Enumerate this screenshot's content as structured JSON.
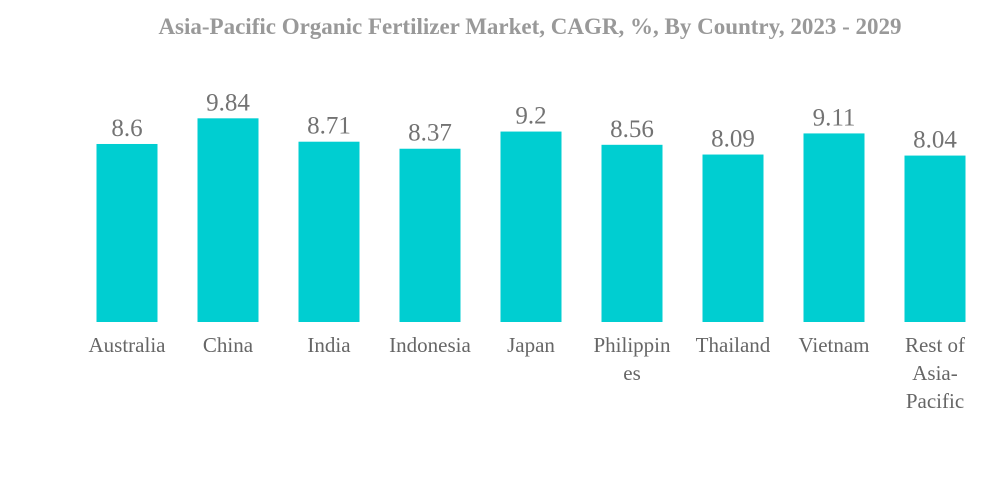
{
  "chart_data": {
    "type": "bar",
    "title": "Asia-Pacific Organic Fertilizer Market, CAGR, %, By Country, 2023 - 2029",
    "categories": [
      "Australia",
      "China",
      "India",
      "Indonesia",
      "Japan",
      "Philippines",
      "Thailand",
      "Vietnam",
      "Rest of Asia-Pacific"
    ],
    "category_lines": [
      [
        "Australia"
      ],
      [
        "China"
      ],
      [
        "India"
      ],
      [
        "Indonesia"
      ],
      [
        "Japan"
      ],
      [
        "Philippin",
        "es"
      ],
      [
        "Thailand"
      ],
      [
        "Vietnam"
      ],
      [
        "Rest of",
        "Asia-",
        "Pacific"
      ]
    ],
    "values": [
      8.6,
      9.84,
      8.71,
      8.37,
      9.2,
      8.56,
      8.09,
      9.11,
      8.04
    ],
    "value_labels": [
      "8.6",
      "9.84",
      "8.71",
      "8.37",
      "9.2",
      "8.56",
      "8.09",
      "9.11",
      "8.04"
    ],
    "bar_color": "#00CED1",
    "grid": false,
    "legend": "none"
  }
}
